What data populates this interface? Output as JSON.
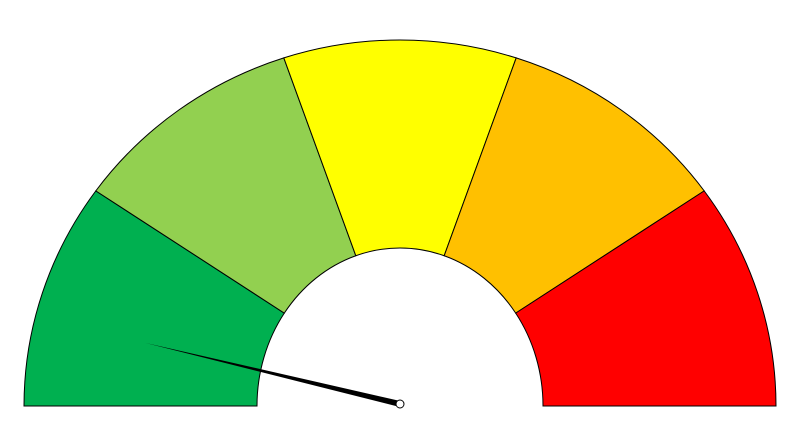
{
  "chart_data": {
    "type": "gauge",
    "values": [
      20,
      20,
      20,
      20,
      20
    ],
    "colors": [
      "#00b050",
      "#92d050",
      "#ffff00",
      "#ffc000",
      "#ff0000"
    ],
    "ylim": [
      0,
      100
    ],
    "needle": 7.5
  }
}
